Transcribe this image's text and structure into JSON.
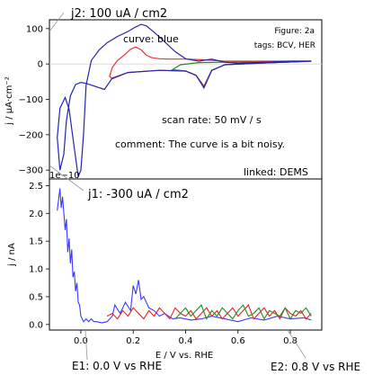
{
  "annotations": {
    "j2": "j2: 100 uA / cm2",
    "j1": "j1: -300 uA / cm2",
    "e1": "E1: 0.0 V vs RHE",
    "e2": "E2: 0.8 V vs RHE"
  },
  "chart_data": [
    {
      "type": "line",
      "panel": "top",
      "ylabel": "j / µA·cm⁻²",
      "xlim": [
        -0.12,
        0.92
      ],
      "ylim": [
        -325,
        125
      ],
      "yticks": [
        100,
        0,
        -100,
        -200,
        -300
      ],
      "tick_labels": [
        "100",
        "0",
        "−100",
        "−200",
        "−300"
      ],
      "offset_text": "1e−10",
      "texts": {
        "curve": "curve: blue",
        "figure": "Figure: 2a",
        "tags": "tags: BCV, HER",
        "scan_rate": "scan rate: 50 mV / s",
        "comment": "comment: The curve is a bit noisy.",
        "linked": "linked: DEMS"
      },
      "colors": {
        "blue": "#2424b4",
        "red": "#ee3030",
        "green": "#228822"
      },
      "series": [
        {
          "color": "blue",
          "x": [
            0.88,
            0.7,
            0.55,
            0.5,
            0.47,
            0.44,
            0.4,
            0.3,
            0.18,
            0.12,
            0.09,
            0.05,
            0.02,
            0.0,
            -0.02,
            -0.04,
            -0.055,
            -0.065,
            -0.08,
            -0.09,
            -0.08,
            -0.06,
            -0.045,
            -0.03,
            -0.01,
            0.0,
            0.01,
            0.02,
            0.04,
            0.07,
            0.1,
            0.14,
            0.18,
            0.21,
            0.23,
            0.25,
            0.28,
            0.32,
            0.36,
            0.4,
            0.45,
            0.5,
            0.55,
            0.6,
            0.7,
            0.8,
            0.88
          ],
          "y": [
            8,
            3,
            -2,
            -18,
            -68,
            -32,
            -20,
            -18,
            -24,
            -40,
            -72,
            -62,
            -55,
            -52,
            -58,
            -90,
            -160,
            -255,
            -300,
            -208,
            -125,
            -95,
            -128,
            -210,
            -318,
            -300,
            -200,
            -60,
            10,
            40,
            60,
            78,
            92,
            105,
            112,
            108,
            90,
            63,
            35,
            15,
            8,
            14,
            5,
            2,
            5,
            8,
            8
          ]
        },
        {
          "color": "red",
          "x": [
            0.88,
            0.7,
            0.55,
            0.5,
            0.47,
            0.44,
            0.4,
            0.3,
            0.18,
            0.12,
            0.11,
            0.12,
            0.14,
            0.17,
            0.19,
            0.21,
            0.23,
            0.25,
            0.27,
            0.3,
            0.34,
            0.4,
            0.46,
            0.55,
            0.7,
            0.88
          ],
          "y": [
            8,
            3,
            -2,
            -18,
            -64,
            -32,
            -20,
            -18,
            -24,
            -42,
            -35,
            -10,
            10,
            28,
            42,
            48,
            40,
            25,
            18,
            15,
            14,
            14,
            12,
            8,
            8,
            8
          ]
        },
        {
          "color": "green",
          "x": [
            0.88,
            0.7,
            0.55,
            0.5,
            0.47,
            0.44,
            0.4,
            0.35,
            0.38,
            0.45,
            0.55,
            0.7,
            0.88
          ],
          "y": [
            8,
            3,
            -2,
            -18,
            -62,
            -32,
            -20,
            -16,
            -2,
            4,
            5,
            6,
            8
          ]
        }
      ]
    },
    {
      "type": "line",
      "panel": "bottom",
      "xlabel": "E / V vs. RHE",
      "ylabel": "j / nA",
      "xlim": [
        -0.12,
        0.92
      ],
      "ylim": [
        -0.1,
        2.62
      ],
      "xticks": [
        0.0,
        0.2,
        0.4,
        0.6,
        0.8
      ],
      "xtick_labels": [
        "0.0",
        "0.2",
        "0.4",
        "0.6",
        "0.8"
      ],
      "yticks": [
        0.0,
        0.5,
        1.0,
        1.5,
        2.0,
        2.5
      ],
      "ytick_labels": [
        "0.0",
        "0.5",
        "1.0",
        "1.5",
        "2.0",
        "2.5"
      ],
      "series": [
        {
          "color": "blue",
          "x": [
            -0.09,
            -0.08,
            -0.075,
            -0.07,
            -0.06,
            -0.055,
            -0.05,
            -0.045,
            -0.04,
            -0.035,
            -0.03,
            -0.025,
            -0.02,
            -0.015,
            -0.01,
            -0.005,
            0.0,
            0.01,
            0.02,
            0.03,
            0.04,
            0.05,
            0.06,
            0.08,
            0.1,
            0.12,
            0.13,
            0.15,
            0.17,
            0.19,
            0.2,
            0.21,
            0.22,
            0.23,
            0.24,
            0.26,
            0.28,
            0.3,
            0.32,
            0.35,
            0.38,
            0.42,
            0.46,
            0.5,
            0.55,
            0.6,
            0.65,
            0.7,
            0.75,
            0.8,
            0.85,
            0.88
          ],
          "y": [
            2.05,
            2.45,
            2.1,
            2.3,
            1.7,
            1.9,
            1.3,
            1.55,
            1.1,
            1.35,
            0.85,
            0.95,
            0.6,
            0.75,
            0.4,
            0.35,
            0.15,
            0.05,
            0.1,
            0.05,
            0.1,
            0.05,
            0.05,
            0.03,
            0.05,
            0.15,
            0.35,
            0.2,
            0.4,
            0.25,
            0.7,
            0.55,
            0.8,
            0.45,
            0.5,
            0.3,
            0.25,
            0.15,
            0.2,
            0.1,
            0.12,
            0.08,
            0.1,
            0.15,
            0.1,
            0.05,
            0.12,
            0.08,
            0.15,
            0.1,
            0.12,
            0.08
          ]
        },
        {
          "color": "red",
          "x": [
            0.1,
            0.12,
            0.14,
            0.16,
            0.18,
            0.2,
            0.22,
            0.24,
            0.26,
            0.28,
            0.3,
            0.32,
            0.34,
            0.36,
            0.38,
            0.4,
            0.42,
            0.44,
            0.46,
            0.48,
            0.5,
            0.52,
            0.54,
            0.56,
            0.58,
            0.6,
            0.62,
            0.64,
            0.66,
            0.68,
            0.7,
            0.72,
            0.74,
            0.76,
            0.78,
            0.8,
            0.82,
            0.84,
            0.86,
            0.88
          ],
          "y": [
            0.15,
            0.2,
            0.1,
            0.25,
            0.15,
            0.3,
            0.2,
            0.1,
            0.25,
            0.15,
            0.3,
            0.2,
            0.1,
            0.3,
            0.2,
            0.15,
            0.25,
            0.1,
            0.2,
            0.3,
            0.15,
            0.25,
            0.1,
            0.2,
            0.3,
            0.15,
            0.25,
            0.35,
            0.1,
            0.2,
            0.3,
            0.15,
            0.25,
            0.1,
            0.3,
            0.2,
            0.15,
            0.25,
            0.1,
            0.2
          ]
        },
        {
          "color": "green",
          "x": [
            0.36,
            0.38,
            0.4,
            0.42,
            0.44,
            0.46,
            0.48,
            0.5,
            0.52,
            0.54,
            0.56,
            0.58,
            0.6,
            0.62,
            0.64,
            0.66,
            0.68,
            0.7,
            0.72,
            0.74,
            0.76,
            0.78,
            0.8,
            0.82,
            0.84,
            0.86,
            0.88
          ],
          "y": [
            0.1,
            0.2,
            0.3,
            0.15,
            0.25,
            0.35,
            0.1,
            0.25,
            0.15,
            0.3,
            0.2,
            0.1,
            0.25,
            0.35,
            0.15,
            0.2,
            0.3,
            0.1,
            0.25,
            0.2,
            0.15,
            0.3,
            0.1,
            0.25,
            0.2,
            0.3,
            0.15
          ]
        }
      ]
    }
  ]
}
